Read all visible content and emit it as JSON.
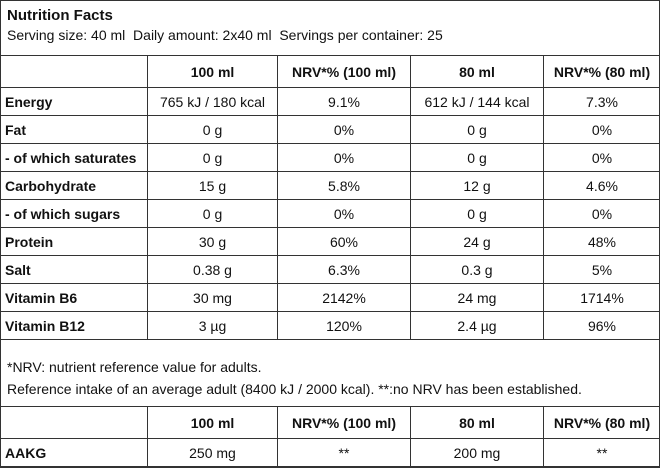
{
  "header": {
    "title": "Nutrition Facts",
    "serving": "Serving size: 40 ml  Daily amount: 2x40 ml  Servings per container: 25"
  },
  "table": {
    "columns": [
      "100 ml",
      "NRV*% (100 ml)",
      "80 ml",
      "NRV*% (80 ml)"
    ],
    "rows": [
      [
        "Energy",
        "765 kJ / 180 kcal",
        "9.1%",
        "612 kJ / 144 kcal",
        "7.3%"
      ],
      [
        "Fat",
        "0 g",
        "0%",
        "0 g",
        "0%"
      ],
      [
        "- of which saturates",
        "0 g",
        "0%",
        "0 g",
        "0%"
      ],
      [
        "Carbohydrate",
        "15 g",
        "5.8%",
        "12 g",
        "4.6%"
      ],
      [
        "- of which sugars",
        "0 g",
        "0%",
        "0 g",
        "0%"
      ],
      [
        "Protein",
        "30 g",
        "60%",
        "24 g",
        "48%"
      ],
      [
        "Salt",
        "0.38 g",
        "6.3%",
        "0.3 g",
        "5%"
      ],
      [
        "Vitamin B6",
        "30 mg",
        "2142%",
        "24 mg",
        "1714%"
      ],
      [
        "Vitamin B12",
        "3 µg",
        "120%",
        "2.4 µg",
        "96%"
      ]
    ]
  },
  "footnotes": [
    "*NRV: nutrient reference value for adults.",
    "Reference intake of an average adult (8400 kJ / 2000 kcal). **:no NRV has been established."
  ],
  "table2": {
    "columns": [
      "100 ml",
      "NRV*% (100 ml)",
      "80 ml",
      "NRV*% (80 ml)"
    ],
    "rows": [
      [
        "AAKG",
        "250 mg",
        "**",
        "200 mg",
        "**"
      ]
    ]
  }
}
